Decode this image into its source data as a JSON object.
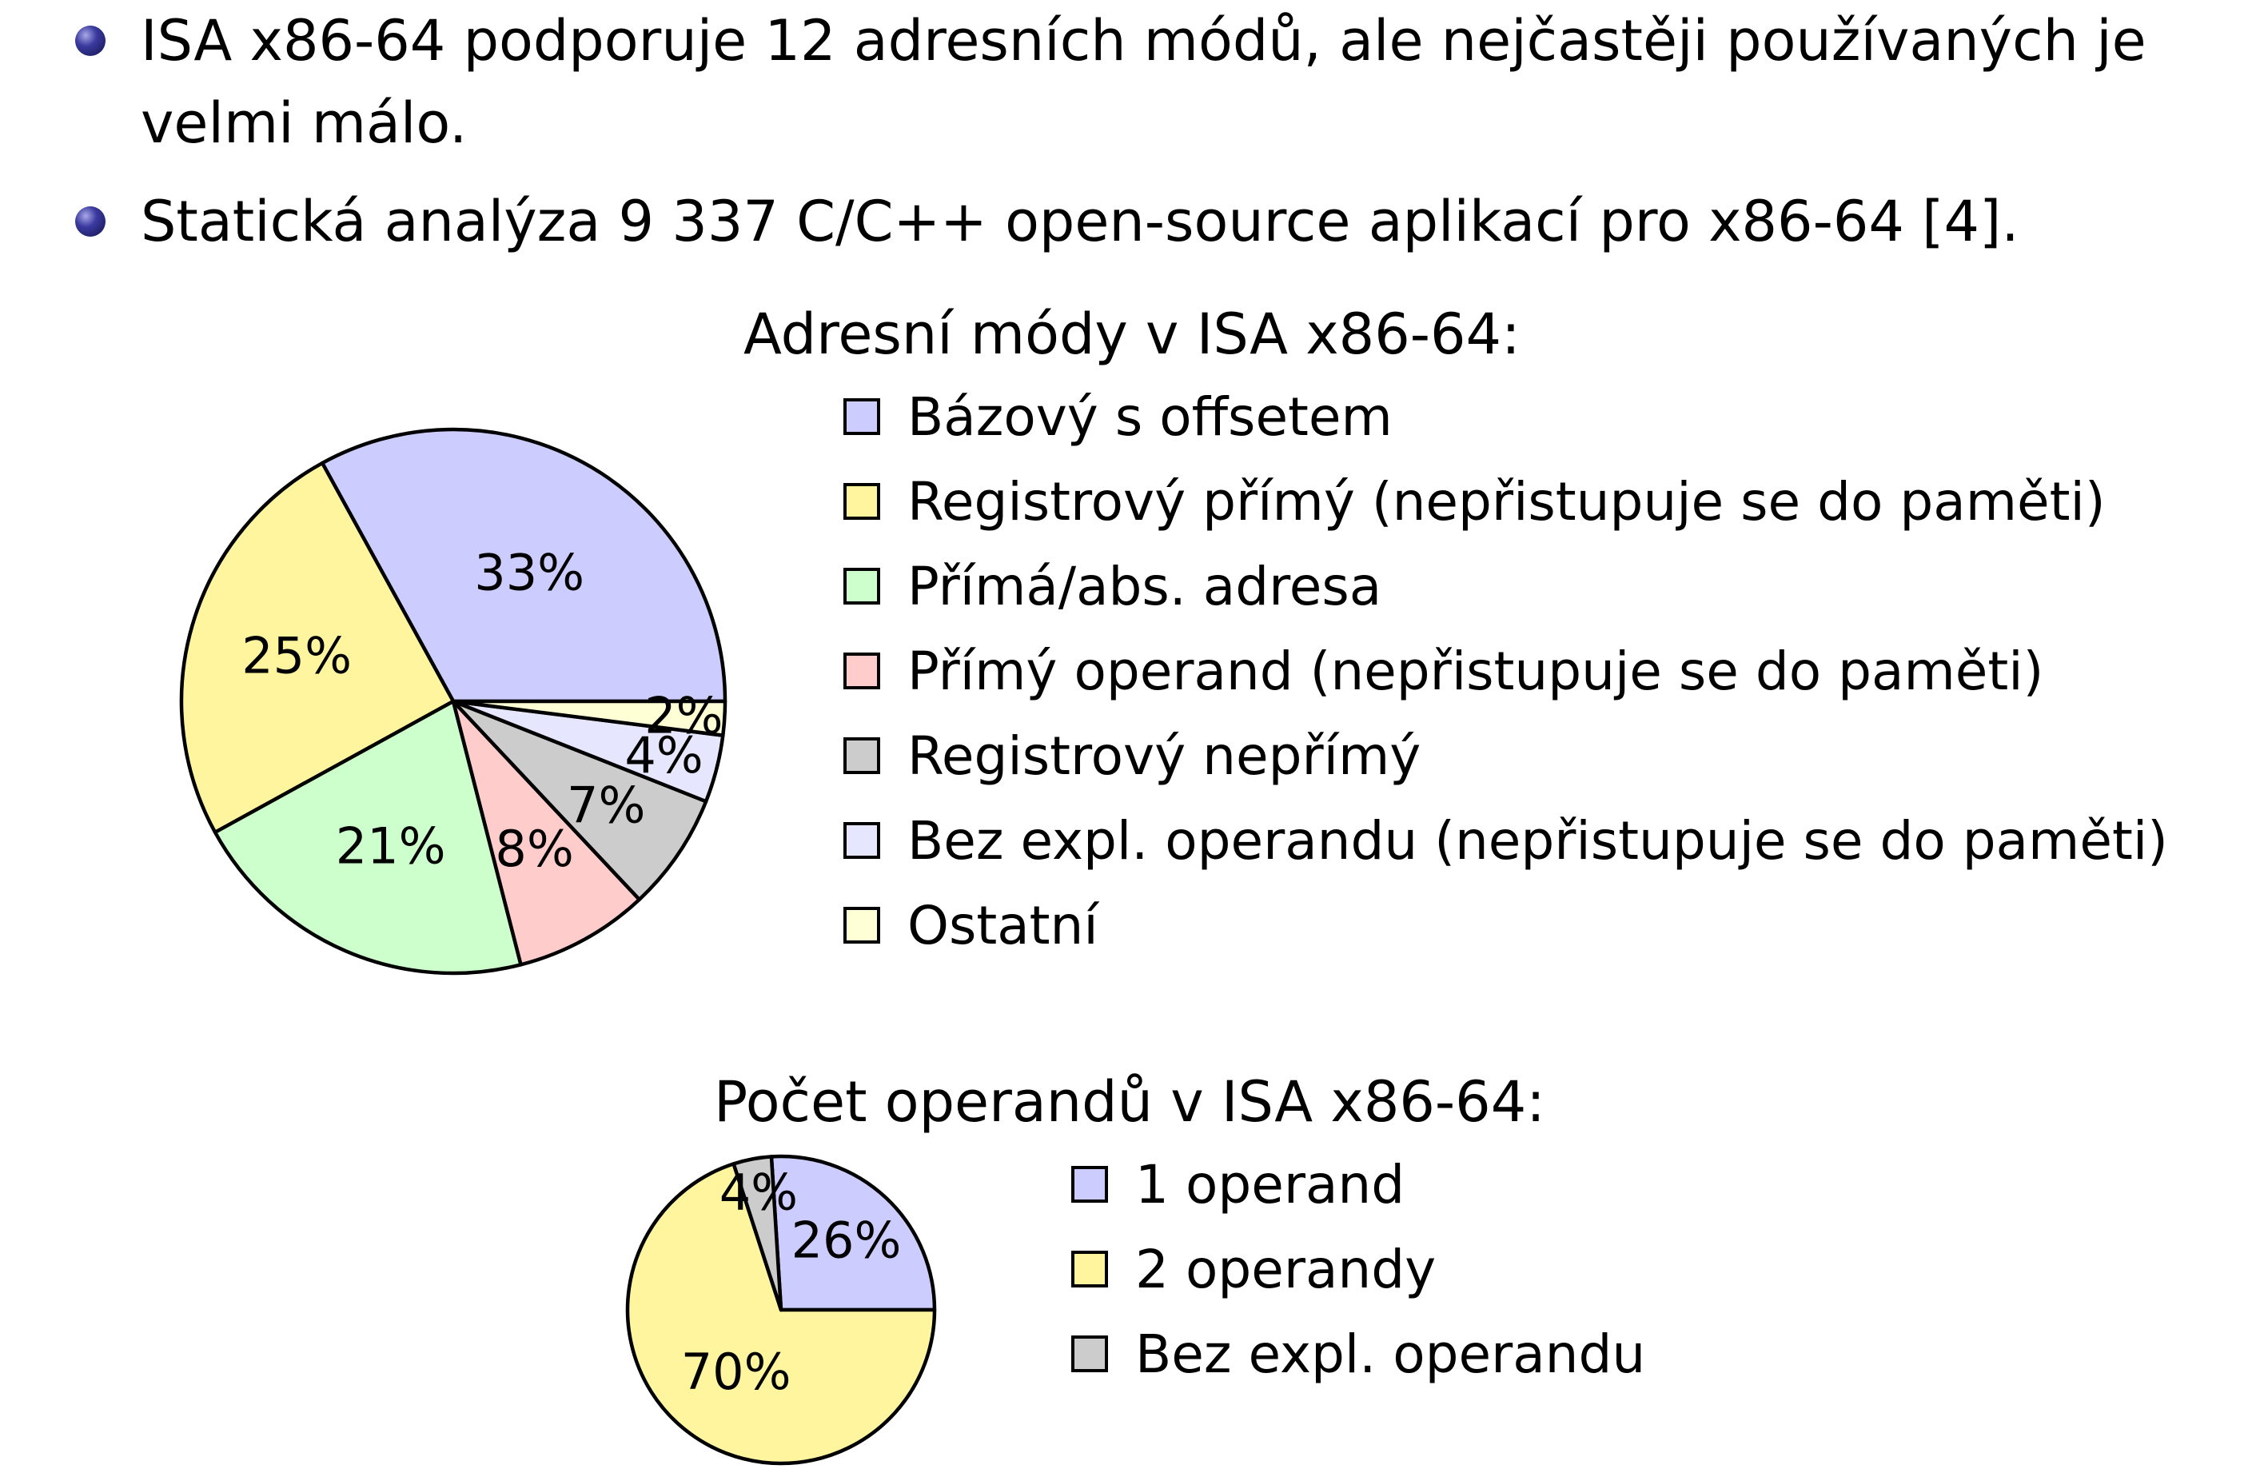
{
  "bullets": [
    "ISA x86-64 podporuje 12 adresních módů, ale nejčastěji používaných je velmi málo.",
    "Statická analýza 9 337 C/C++ open-source aplikací pro x86-64 [4]."
  ],
  "chart_data": [
    {
      "type": "pie",
      "title": "Adresní módy v ISA x86-64:",
      "categories": [
        "Bázový s offsetem",
        "Registrový přímý (nepřistupuje se do paměti)",
        "Přímá/abs. adresa",
        "Přímý operand (nepřistupuje se do paměti)",
        "Registrový nepřímý",
        "Bez expl. operandu (nepřistupuje se do paměti)",
        "Ostatní"
      ],
      "values": [
        33,
        25,
        21,
        8,
        7,
        4,
        2
      ],
      "labels": [
        "33%",
        "25%",
        "21%",
        "8%",
        "7%",
        "4%",
        "2%"
      ],
      "colors": [
        "#ccccff",
        "#fff59f",
        "#ccffcc",
        "#ffcccc",
        "#cccccc",
        "#e6e6ff",
        "#ffffd6"
      ],
      "legend_position": "right"
    },
    {
      "type": "pie",
      "title": "Počet operandů v ISA x86-64:",
      "categories": [
        "1 operand",
        "2 operandy",
        "Bez expl. operandu"
      ],
      "values": [
        26,
        70,
        4
      ],
      "labels": [
        "26%",
        "70%",
        "4%"
      ],
      "colors": [
        "#ccccff",
        "#fff59f",
        "#cccccc"
      ],
      "legend_position": "right"
    }
  ]
}
